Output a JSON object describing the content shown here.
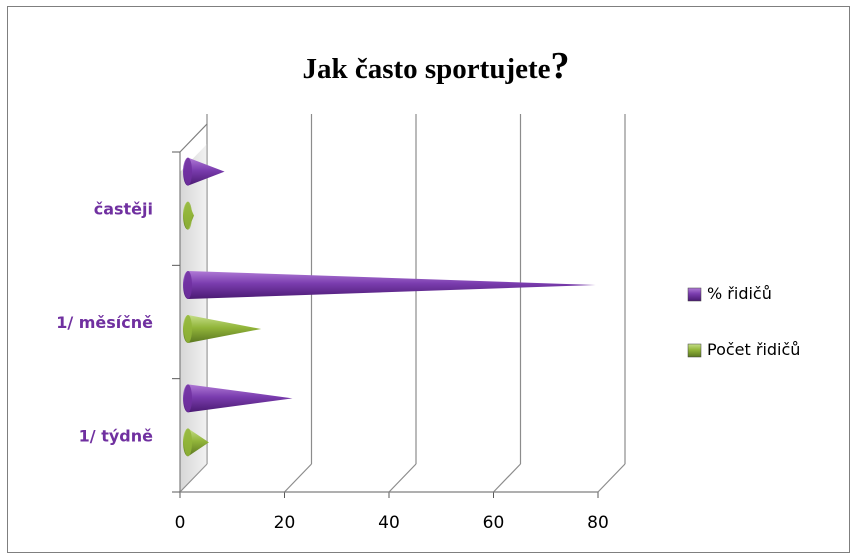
{
  "chart_data": {
    "type": "bar",
    "orientation": "horizontal",
    "style": "3d-cone",
    "title": "Jak často sportujete?",
    "title_main": "Jak často sportujete",
    "title_mark": "?",
    "categories": [
      "1/ týdně",
      "1/ měsíčně",
      "častěji"
    ],
    "series": [
      {
        "name": "% řidičů",
        "values": [
          20,
          78,
          7
        ],
        "color": "#7030a0"
      },
      {
        "name": "Počet řidičů",
        "values": [
          4,
          14,
          1
        ],
        "color": "#92b53a"
      }
    ],
    "xlim": [
      0,
      80
    ],
    "xticks": [
      "0",
      "20",
      "40",
      "60",
      "80"
    ],
    "grid": true,
    "legend_position": "right"
  }
}
